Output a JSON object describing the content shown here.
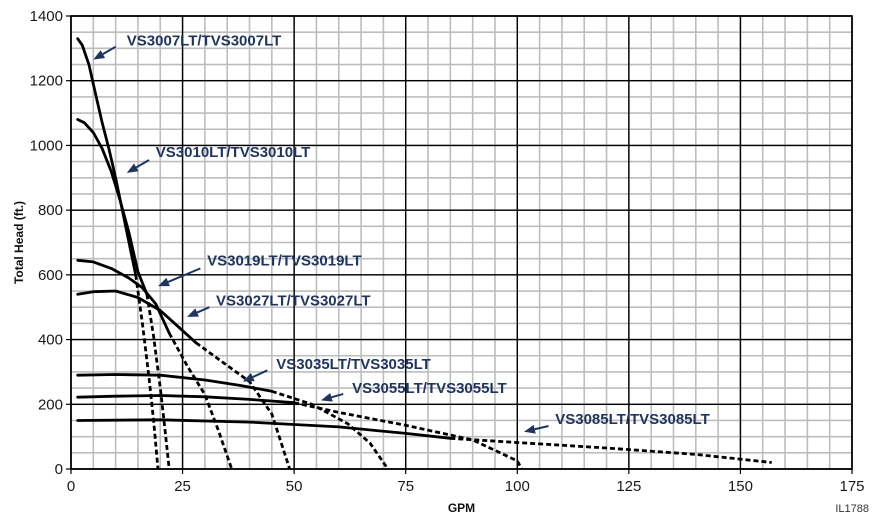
{
  "chart_data": {
    "type": "line",
    "xlabel": "GPM",
    "ylabel": "Total Head (ft.)",
    "xlim": [
      0,
      175
    ],
    "ylim": [
      0,
      1400
    ],
    "x_ticks": [
      0,
      25,
      50,
      75,
      100,
      125,
      150,
      175
    ],
    "y_ticks": [
      0,
      200,
      400,
      600,
      800,
      1000,
      1200,
      1400
    ],
    "grid": true,
    "note": "IL1788",
    "arrow_color": "#1f3560",
    "series": [
      {
        "name": "VS3007LT/TVS3007LT",
        "solid": [
          [
            1.5,
            1330
          ],
          [
            2.5,
            1310
          ],
          [
            4,
            1250
          ],
          [
            5.5,
            1160
          ],
          [
            7,
            1070
          ],
          [
            8.5,
            990
          ],
          [
            10,
            900
          ],
          [
            11.5,
            800
          ],
          [
            13,
            700
          ],
          [
            14.5,
            600
          ]
        ],
        "dashed": [
          [
            14.5,
            600
          ],
          [
            16,
            450
          ],
          [
            17.5,
            280
          ],
          [
            18.5,
            150
          ],
          [
            19.5,
            0
          ]
        ]
      },
      {
        "name": "VS3010LT/TVS3010LT",
        "solid": [
          [
            1.5,
            1080
          ],
          [
            3,
            1070
          ],
          [
            5,
            1040
          ],
          [
            7,
            990
          ],
          [
            9,
            920
          ],
          [
            11,
            830
          ],
          [
            13,
            730
          ],
          [
            15,
            610
          ],
          [
            17,
            540
          ]
        ],
        "dashed": [
          [
            17,
            540
          ],
          [
            18.5,
            410
          ],
          [
            20,
            250
          ],
          [
            21,
            130
          ],
          [
            22,
            0
          ]
        ]
      },
      {
        "name": "VS3019LT/TVS3019LT",
        "solid": [
          [
            1.5,
            645
          ],
          [
            5,
            640
          ],
          [
            9,
            620
          ],
          [
            13,
            590
          ],
          [
            16,
            560
          ],
          [
            19,
            510
          ],
          [
            22,
            420
          ]
        ],
        "dashed": [
          [
            22,
            420
          ],
          [
            26,
            320
          ],
          [
            30,
            230
          ],
          [
            33,
            120
          ],
          [
            36,
            0
          ]
        ]
      },
      {
        "name": "VS3027LT/TVS3027LT",
        "solid": [
          [
            1.5,
            540
          ],
          [
            5,
            548
          ],
          [
            10,
            550
          ],
          [
            15,
            530
          ],
          [
            20,
            490
          ],
          [
            24,
            440
          ],
          [
            28,
            390
          ]
        ],
        "dashed": [
          [
            28,
            390
          ],
          [
            34,
            330
          ],
          [
            40,
            270
          ],
          [
            45,
            170
          ],
          [
            49,
            0
          ]
        ]
      },
      {
        "name": "VS3035LT/TVS3035LT",
        "solid": [
          [
            1.5,
            290
          ],
          [
            10,
            292
          ],
          [
            20,
            290
          ],
          [
            30,
            275
          ],
          [
            38,
            258
          ],
          [
            45,
            240
          ]
        ],
        "dashed": [
          [
            45,
            240
          ],
          [
            54,
            200
          ],
          [
            62,
            140
          ],
          [
            67,
            80
          ],
          [
            71,
            0
          ]
        ]
      },
      {
        "name": "VS3055LT/TVS3055LT",
        "solid": [
          [
            1.5,
            222
          ],
          [
            10,
            225
          ],
          [
            20,
            227
          ],
          [
            30,
            223
          ],
          [
            40,
            215
          ],
          [
            50,
            205
          ]
        ],
        "dashed": [
          [
            50,
            205
          ],
          [
            60,
            175
          ],
          [
            75,
            135
          ],
          [
            90,
            90
          ],
          [
            100,
            25
          ],
          [
            101,
            0
          ]
        ]
      },
      {
        "name": "VS3085LT/TVS3085LT",
        "solid": [
          [
            1.5,
            150
          ],
          [
            20,
            152
          ],
          [
            40,
            145
          ],
          [
            60,
            130
          ],
          [
            75,
            110
          ],
          [
            85,
            95
          ]
        ],
        "dashed": [
          [
            85,
            95
          ],
          [
            100,
            82
          ],
          [
            120,
            65
          ],
          [
            140,
            45
          ],
          [
            157,
            20
          ]
        ]
      }
    ],
    "labels": [
      {
        "text": "VS3007LT/TVS3007LT",
        "at": [
          12.5,
          1325
        ],
        "arrow_from": [
          10,
          1305
        ],
        "arrow_to": [
          5,
          1265
        ]
      },
      {
        "text": "VS3010LT/TVS3010LT",
        "at": [
          19,
          980
        ],
        "arrow_from": [
          17.5,
          955
        ],
        "arrow_to": [
          12.5,
          915
        ]
      },
      {
        "text": "VS3019LT/TVS3019LT",
        "at": [
          30.5,
          645
        ],
        "arrow_from": [
          29,
          620
        ],
        "arrow_to": [
          19.5,
          565
        ]
      },
      {
        "text": "VS3027LT/TVS3027LT",
        "at": [
          32.5,
          520
        ],
        "arrow_from": [
          31,
          500
        ],
        "arrow_to": [
          26,
          470
        ]
      },
      {
        "text": "VS3035LT/TVS3035LT",
        "at": [
          46,
          325
        ],
        "arrow_from": [
          44,
          305
        ],
        "arrow_to": [
          38.5,
          270
        ]
      },
      {
        "text": "VS3055LT/TVS3055LT",
        "at": [
          63,
          250
        ],
        "arrow_from": [
          61,
          232
        ],
        "arrow_to": [
          56,
          212
        ]
      },
      {
        "text": "VS3085LT/TVS3085LT",
        "at": [
          108.5,
          155
        ],
        "arrow_from": [
          107,
          133
        ],
        "arrow_to": [
          101.5,
          115
        ]
      }
    ]
  }
}
